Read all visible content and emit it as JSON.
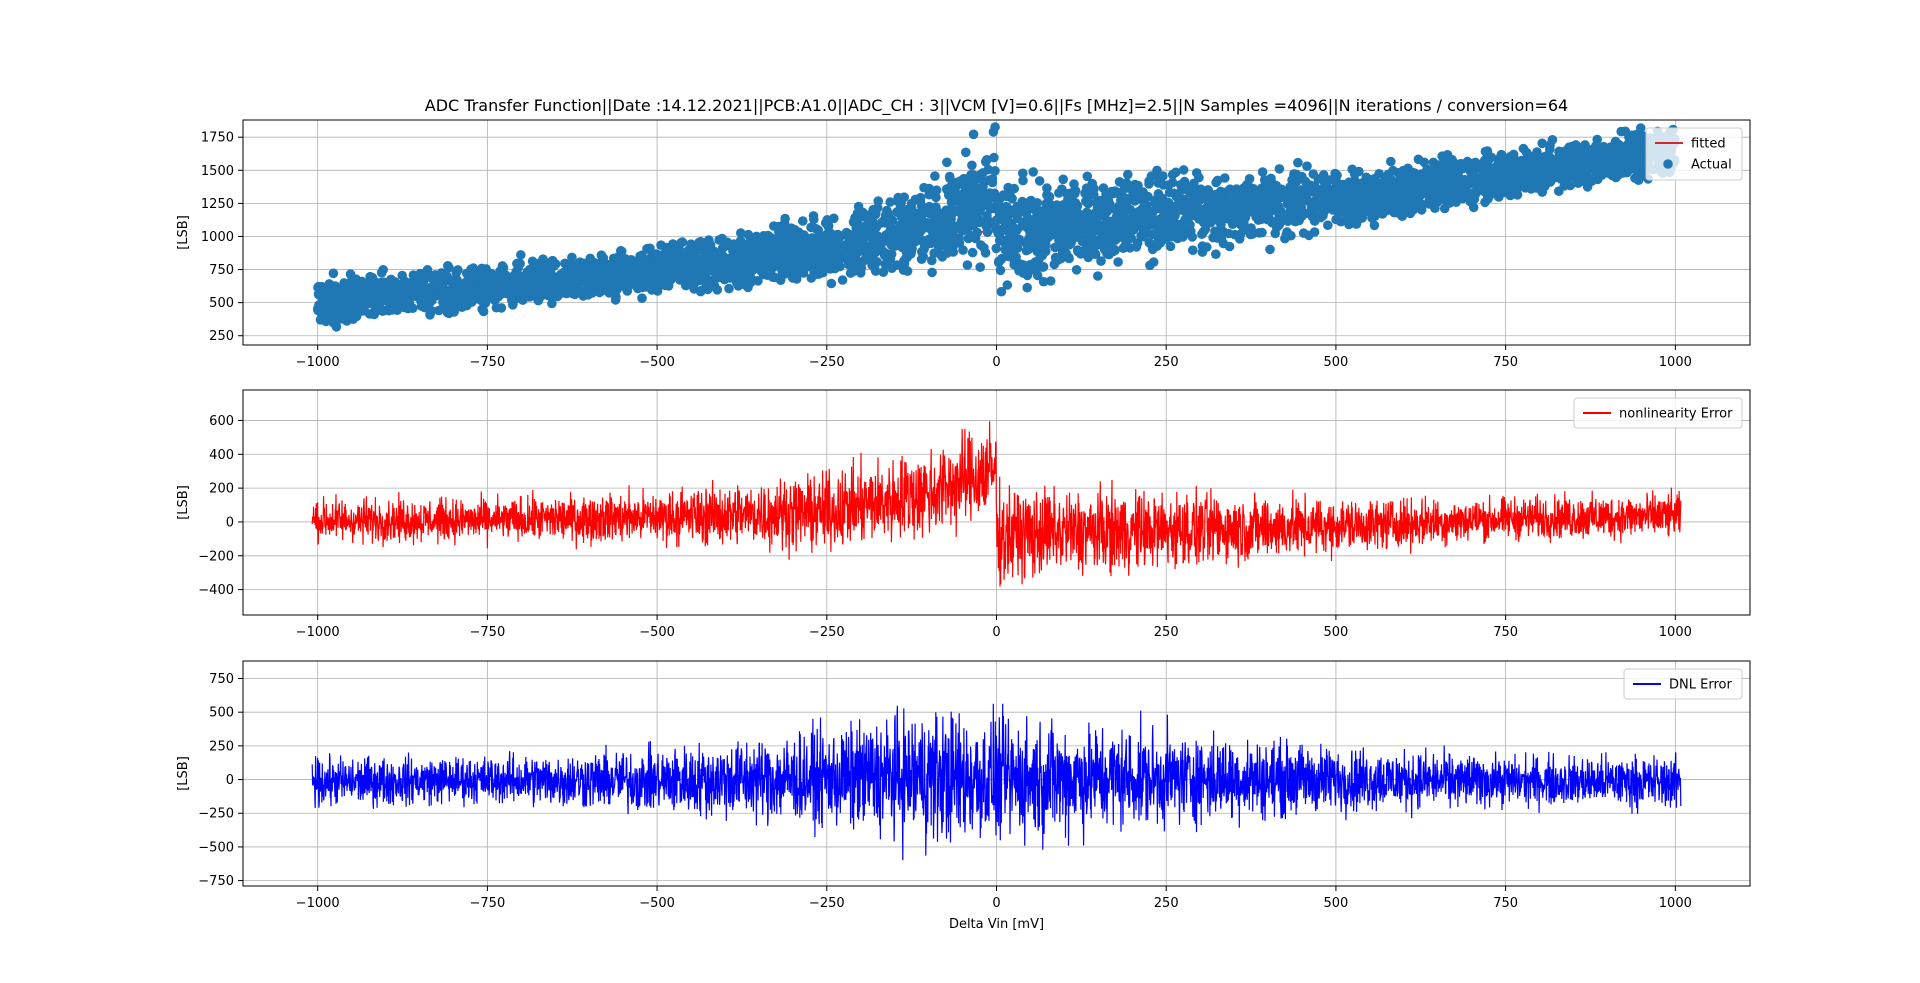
{
  "figure": {
    "title": "ADC Transfer Function||Date :14.12.2021||PCB:A1.0||ADC_CH : 3||VCM [V]=0.6||Fs [MHz]=2.5||N Samples =4096||N iterations / conversion=64",
    "xlabel": "Delta Vin [mV]"
  },
  "chart_data": [
    {
      "type": "scatter",
      "xlabel": "",
      "ylabel": "[LSB]",
      "xlim": [
        -1110,
        1110
      ],
      "ylim": [
        180,
        1880
      ],
      "xticks": [
        -1000,
        -750,
        -500,
        -250,
        0,
        250,
        500,
        750,
        1000
      ],
      "yticks": [
        250,
        500,
        750,
        1000,
        1250,
        1500,
        1750
      ],
      "grid": true,
      "legend_position": "top-right",
      "series": [
        {
          "name": "fitted",
          "kind": "line",
          "color": "#d62728",
          "points": [
            [
              -1000,
              480
            ],
            [
              1000,
              1615
            ]
          ]
        },
        {
          "name": "Actual",
          "kind": "scatter",
          "color": "#1f77b4",
          "n_points": 4096,
          "envelope": {
            "x": [
              -1000,
              -750,
              -500,
              -250,
              -100,
              -1,
              1,
              100,
              250,
              500,
              750,
              1000
            ],
            "lo": [
              330,
              450,
              560,
              650,
              760,
              830,
              620,
              750,
              860,
              1050,
              1300,
              1450
            ],
            "hi": [
              680,
              780,
              920,
              1150,
              1400,
              1760,
              1420,
              1420,
              1480,
              1520,
              1640,
              1840
            ]
          }
        }
      ]
    },
    {
      "type": "line",
      "xlabel": "",
      "ylabel": "[LSB]",
      "xlim": [
        -1110,
        1110
      ],
      "ylim": [
        -550,
        780
      ],
      "xticks": [
        -1000,
        -750,
        -500,
        -250,
        0,
        250,
        500,
        750,
        1000
      ],
      "yticks": [
        -400,
        -200,
        0,
        200,
        400,
        600
      ],
      "grid": true,
      "legend_position": "top-right",
      "series": [
        {
          "name": "nonlinearity Error",
          "color": "#ff0000",
          "n_points": 4096,
          "envelope": {
            "x": [
              -1000,
              -750,
              -500,
              -250,
              -100,
              -1,
              1,
              100,
              250,
              500,
              750,
              1000
            ],
            "lo": [
              -180,
              -170,
              -190,
              -260,
              -210,
              -100,
              -480,
              -420,
              -380,
              -250,
              -160,
              -160
            ],
            "hi": [
              200,
              190,
              250,
              380,
              550,
              720,
              320,
              300,
              280,
              200,
              200,
              230
            ]
          }
        }
      ]
    },
    {
      "type": "line",
      "xlabel": "Delta Vin [mV]",
      "ylabel": "[LSB]",
      "xlim": [
        -1110,
        1110
      ],
      "ylim": [
        -790,
        880
      ],
      "xticks": [
        -1000,
        -750,
        -500,
        -250,
        0,
        250,
        500,
        750,
        1000
      ],
      "yticks": [
        -750,
        -500,
        -250,
        0,
        250,
        500,
        750
      ],
      "grid": true,
      "legend_position": "top-right",
      "series": [
        {
          "name": "DNL Error",
          "color": "#0000ff",
          "n_points": 4096,
          "envelope": {
            "x": [
              -1000,
              -750,
              -500,
              -250,
              -100,
              0,
              100,
              250,
              500,
              750,
              1000
            ],
            "lo": [
              -280,
              -250,
              -350,
              -500,
              -700,
              -650,
              -600,
              -480,
              -350,
              -270,
              -300
            ],
            "hi": [
              240,
              250,
              330,
              520,
              750,
              650,
              620,
              500,
              350,
              250,
              260
            ]
          }
        }
      ]
    }
  ]
}
